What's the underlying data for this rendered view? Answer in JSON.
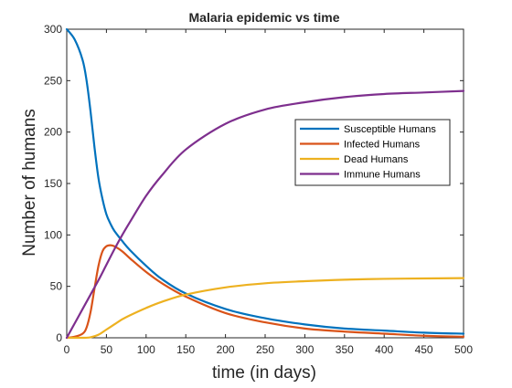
{
  "chart_data": {
    "type": "line",
    "title": "Malaria epidemic vs time",
    "xlabel": "time (in days)",
    "ylabel": "Number of humans",
    "xlim": [
      0,
      500
    ],
    "ylim": [
      0,
      300
    ],
    "xticks": [
      0,
      50,
      100,
      150,
      200,
      250,
      300,
      350,
      400,
      450,
      500
    ],
    "yticks": [
      0,
      50,
      100,
      150,
      200,
      250,
      300
    ],
    "grid": false,
    "legend": "upper right inside axes",
    "series": [
      {
        "name": "Susceptible Humans",
        "color": "#0072BD",
        "x": [
          0,
          10,
          20,
          25,
          30,
          35,
          40,
          45,
          50,
          55,
          60,
          70,
          80,
          100,
          120,
          150,
          200,
          250,
          300,
          350,
          400,
          450,
          500
        ],
        "y": [
          300,
          290,
          270,
          250,
          220,
          185,
          155,
          135,
          120,
          111,
          104,
          94,
          85,
          70,
          57,
          43,
          28,
          19,
          13,
          9,
          7,
          5,
          4
        ]
      },
      {
        "name": "Infected Humans",
        "color": "#D95319",
        "x": [
          0,
          10,
          20,
          25,
          30,
          35,
          40,
          45,
          50,
          55,
          60,
          70,
          80,
          100,
          120,
          150,
          200,
          250,
          300,
          350,
          400,
          450,
          500
        ],
        "y": [
          0,
          1,
          4,
          10,
          25,
          48,
          70,
          84,
          89,
          90,
          89,
          84,
          77,
          64,
          53,
          40,
          24,
          15,
          9,
          6,
          4,
          2,
          1
        ]
      },
      {
        "name": "Dead Humans",
        "color": "#EDB120",
        "x": [
          0,
          20,
          30,
          40,
          50,
          60,
          70,
          80,
          100,
          120,
          150,
          200,
          250,
          300,
          350,
          400,
          450,
          500
        ],
        "y": [
          0,
          0,
          0.5,
          3,
          8,
          13,
          18,
          22,
          29,
          35,
          42,
          49,
          53,
          55,
          56.5,
          57.3,
          57.7,
          58
        ]
      },
      {
        "name": "Immune Humans",
        "color": "#7E2F8E",
        "x": [
          0,
          10,
          20,
          30,
          40,
          50,
          60,
          70,
          80,
          100,
          120,
          150,
          200,
          250,
          300,
          350,
          400,
          450,
          500
        ],
        "y": [
          0,
          14,
          28,
          42,
          56,
          71,
          86,
          100,
          113,
          138,
          158,
          183,
          208,
          222,
          229,
          234,
          237,
          238.5,
          240
        ]
      }
    ]
  }
}
